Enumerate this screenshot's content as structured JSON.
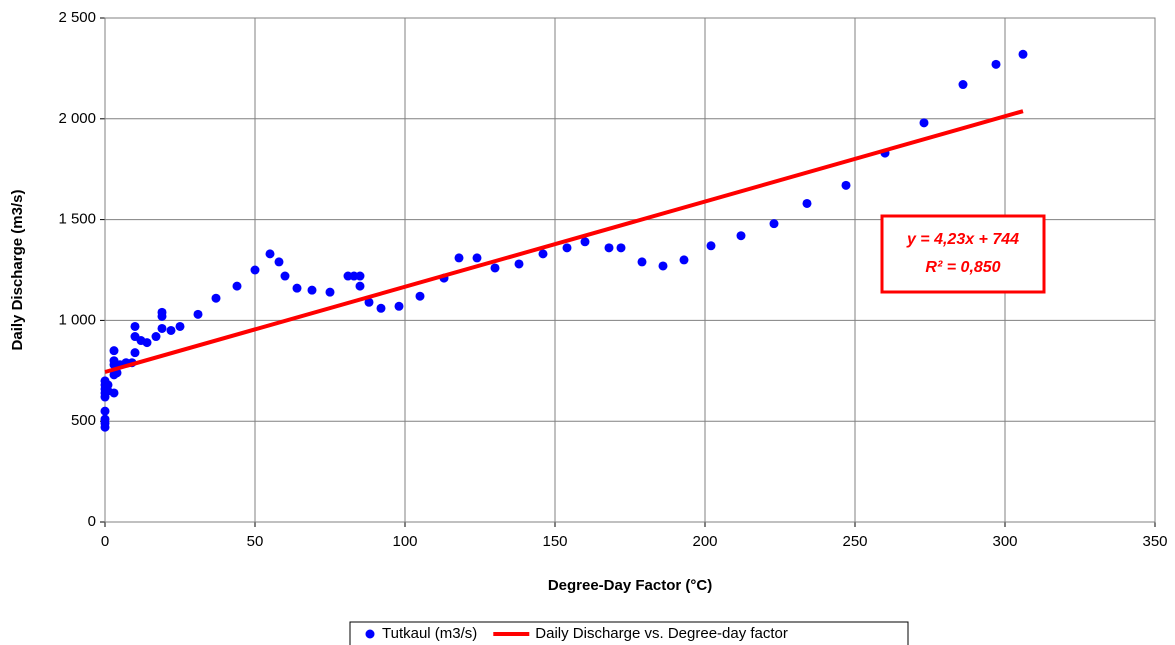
{
  "chart_data": {
    "type": "scatter",
    "xlabel": "Degree-Day Factor (°C)",
    "ylabel": "Daily Discharge (m3/s)",
    "xlim": [
      0,
      350
    ],
    "ylim": [
      0,
      2500
    ],
    "xticks": [
      0,
      50,
      100,
      150,
      200,
      250,
      300,
      350
    ],
    "yticks": [
      0,
      500,
      {
        "value": 1000,
        "label": "1 000"
      },
      {
        "value": 1500,
        "label": "1 500"
      },
      {
        "value": 2000,
        "label": "2 000"
      },
      {
        "value": 2500,
        "label": "2 500"
      }
    ],
    "grid": true,
    "legend": "bottom",
    "annotation": [
      "y = 4,23x + 744",
      "R² = 0,850"
    ],
    "series": [
      {
        "name": "Tutkaul (m3/s)",
        "color": "#0000ff",
        "type": "scatter",
        "x": [
          0,
          0,
          0,
          0,
          0,
          0,
          0,
          0,
          0,
          1,
          1,
          3,
          3,
          3,
          3,
          3,
          4,
          5,
          7,
          9,
          10,
          10,
          10,
          12,
          14,
          17,
          19,
          19,
          19,
          22,
          25,
          31,
          37,
          44,
          50,
          55,
          58,
          60,
          64,
          69,
          75,
          81,
          83,
          85,
          85,
          88,
          92,
          98,
          105,
          113,
          118,
          124,
          130,
          138,
          146,
          154,
          160,
          168,
          172,
          179,
          186,
          193,
          202,
          212,
          223,
          234,
          247,
          260,
          273,
          286,
          297,
          306
        ],
        "values": [
          470,
          490,
          510,
          550,
          620,
          640,
          660,
          680,
          700,
          650,
          680,
          640,
          730,
          780,
          800,
          850,
          740,
          780,
          790,
          790,
          840,
          920,
          970,
          900,
          890,
          920,
          960,
          1020,
          1040,
          950,
          970,
          1030,
          1110,
          1170,
          1250,
          1330,
          1290,
          1220,
          1160,
          1150,
          1140,
          1220,
          1220,
          1220,
          1170,
          1090,
          1060,
          1070,
          1120,
          1210,
          1310,
          1310,
          1260,
          1280,
          1330,
          1360,
          1390,
          1360,
          1360,
          1290,
          1270,
          1300,
          1370,
          1420,
          1480,
          1580,
          1670,
          1830,
          1980,
          2170,
          2270,
          2320
        ]
      },
      {
        "name": "Daily Discharge vs. Degree-day factor",
        "color": "#ff0000",
        "type": "line",
        "x": [
          0,
          306
        ],
        "values": [
          744,
          2038
        ]
      }
    ]
  }
}
